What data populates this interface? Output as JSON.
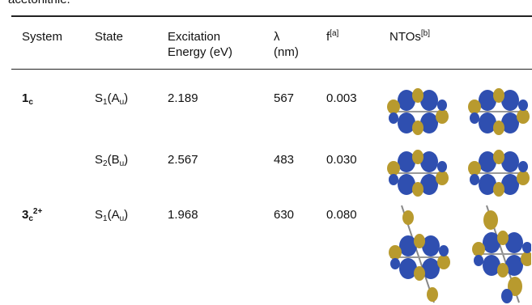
{
  "caption_fragment": "acetonitrile.",
  "table": {
    "header": [
      {
        "text": "System"
      },
      {
        "text": "State"
      },
      {
        "lines": [
          "Excitation",
          "Energy (eV)"
        ]
      },
      {
        "lines": [
          "λ",
          "(nm)"
        ]
      },
      {
        "text": "f",
        "sup": "[a]"
      },
      {
        "text": "NTOs",
        "sup": "[b]"
      }
    ],
    "rows": [
      {
        "system": {
          "text": "1",
          "sub": "c"
        },
        "state": [
          "S",
          "1",
          "(A",
          "u",
          ")"
        ],
        "energy": "2.189",
        "lambda": "567",
        "f": "0.003"
      },
      {
        "state": [
          "S",
          "2",
          "(B",
          "u",
          ")"
        ],
        "energy": "2.567",
        "lambda": "483",
        "f": "0.030"
      },
      {
        "system": {
          "text": "3",
          "sub": "c",
          "sup": "2+"
        },
        "state": [
          "S",
          "1",
          "(A",
          "u",
          ")"
        ],
        "energy": "1.968",
        "lambda": "630",
        "f": "0.080"
      }
    ]
  }
}
